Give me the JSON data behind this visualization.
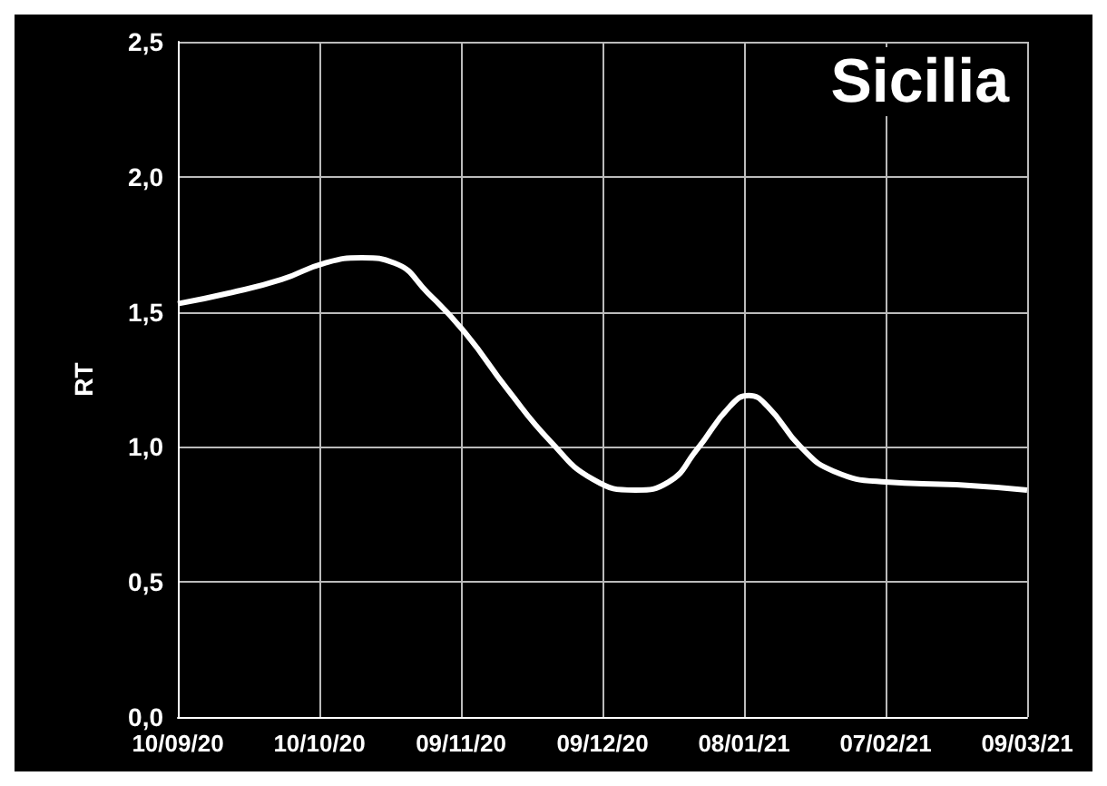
{
  "chart_data": {
    "type": "line",
    "title": "Sicilia",
    "ylabel": "RT",
    "x": [
      "2020-09-10",
      "2020-09-21",
      "2020-10-02",
      "2020-10-11",
      "2020-10-19",
      "2020-10-26",
      "2020-11-02",
      "2020-11-10",
      "2020-11-19",
      "2020-11-28",
      "2020-12-07",
      "2020-12-16",
      "2020-12-23",
      "2020-12-29",
      "2021-01-05",
      "2021-01-09",
      "2021-01-13",
      "2021-01-20",
      "2021-01-27",
      "2021-02-07",
      "2021-02-22",
      "2021-03-09"
    ],
    "series": [
      {
        "color": "#ffffff",
        "values": [
          1.53,
          1.57,
          1.62,
          1.68,
          1.7,
          1.68,
          1.57,
          1.42,
          1.21,
          1.02,
          0.88,
          0.84,
          0.87,
          0.99,
          1.15,
          1.19,
          1.15,
          1.0,
          0.91,
          0.87,
          0.86,
          0.84
        ]
      }
    ],
    "xlim": [
      "2020-09-10",
      "2021-03-09"
    ],
    "xticks": [
      {
        "value": "2020-09-10",
        "label": "10/09/20"
      },
      {
        "value": "2020-10-10",
        "label": "10/10/20"
      },
      {
        "value": "2020-11-09",
        "label": "09/11/20"
      },
      {
        "value": "2020-12-09",
        "label": "09/12/20"
      },
      {
        "value": "2021-01-08",
        "label": "08/01/21"
      },
      {
        "value": "2021-02-07",
        "label": "07/02/21"
      },
      {
        "value": "2021-03-09",
        "label": "09/03/21"
      }
    ],
    "ylim": [
      0,
      2.5
    ],
    "yticks": [
      {
        "value": 0,
        "label": "0,0"
      },
      {
        "value": 0.5,
        "label": "0,5"
      },
      {
        "value": 1,
        "label": "1,0"
      },
      {
        "value": 1.5,
        "label": "1,5"
      },
      {
        "value": 2,
        "label": "2,0"
      },
      {
        "value": 2.5,
        "label": "2,5"
      }
    ],
    "grid": true,
    "marker": "none",
    "line_style": "solid"
  }
}
